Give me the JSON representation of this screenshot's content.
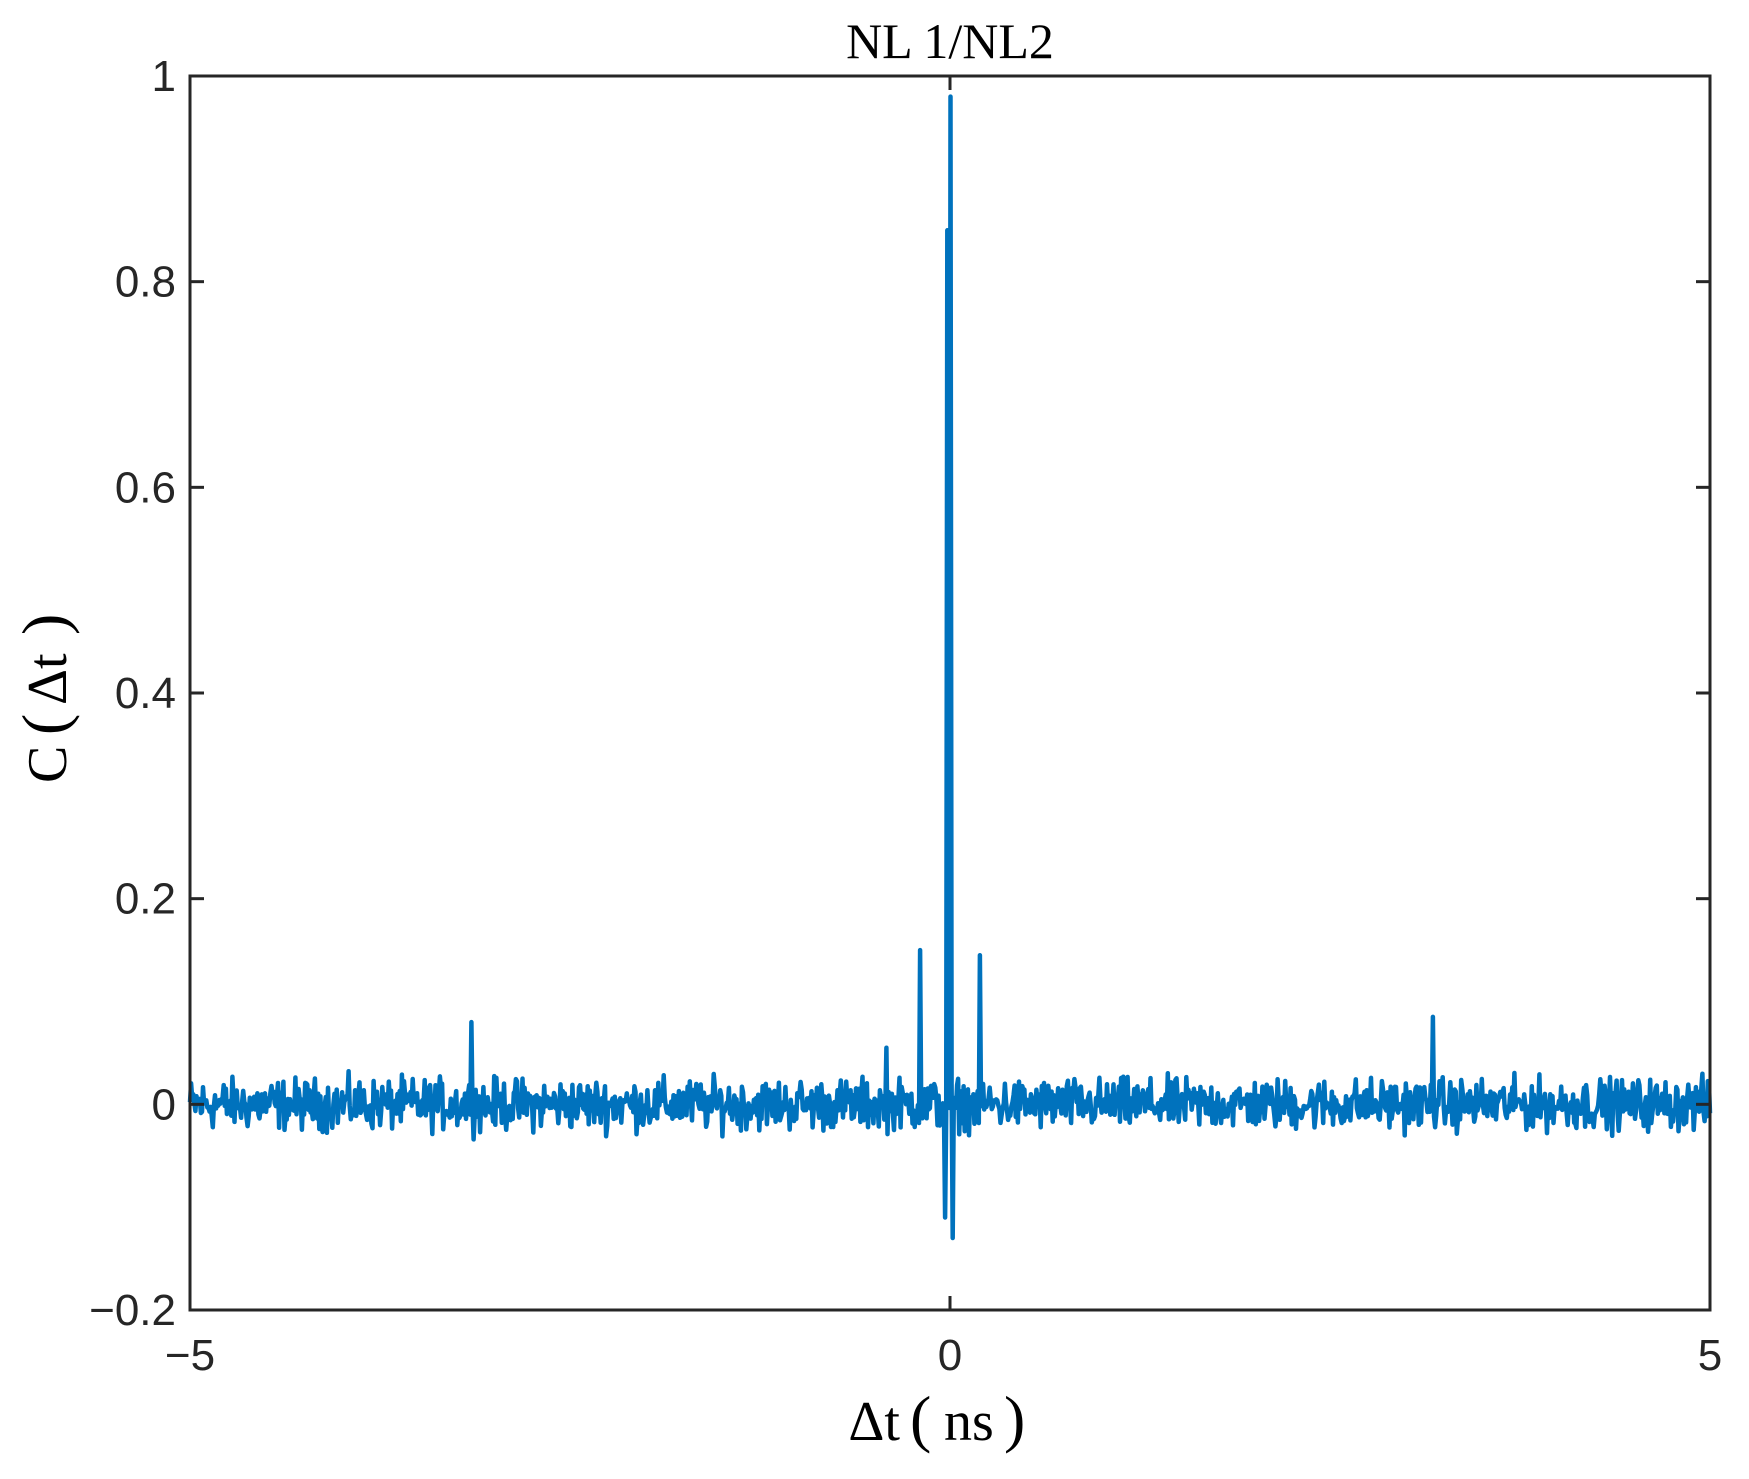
{
  "chart_data": {
    "type": "line",
    "title": "NL 1/NL2",
    "xlabel": {
      "symbol": "Δt",
      "unit": "ns"
    },
    "ylabel": {
      "func": "C",
      "arg": "Δt"
    },
    "xlim": [
      -5,
      5
    ],
    "ylim": [
      -0.2,
      1
    ],
    "x_ticks": [
      -5,
      0,
      5
    ],
    "x_tick_labels": [
      "−5",
      "0",
      "5"
    ],
    "y_ticks": [
      -0.2,
      0,
      0.2,
      0.4,
      0.6,
      0.8,
      1
    ],
    "y_tick_labels": [
      "−0.2",
      "0",
      "0.2",
      "0.4",
      "0.6",
      "0.8",
      "1"
    ],
    "grid": false,
    "series": [
      {
        "color": "#0072bd",
        "noise_amplitude": 0.03,
        "peaks": [
          {
            "x": 0.0,
            "y": 0.98
          },
          {
            "x": -0.02,
            "y": 0.85
          },
          {
            "x": 0.02,
            "y": -0.13
          },
          {
            "x": -0.03,
            "y": -0.11
          },
          {
            "x": -0.2,
            "y": 0.15
          },
          {
            "x": 0.2,
            "y": 0.145
          },
          {
            "x": -3.15,
            "y": 0.08
          },
          {
            "x": 3.18,
            "y": 0.085
          },
          {
            "x": -0.42,
            "y": 0.055
          }
        ]
      }
    ]
  }
}
